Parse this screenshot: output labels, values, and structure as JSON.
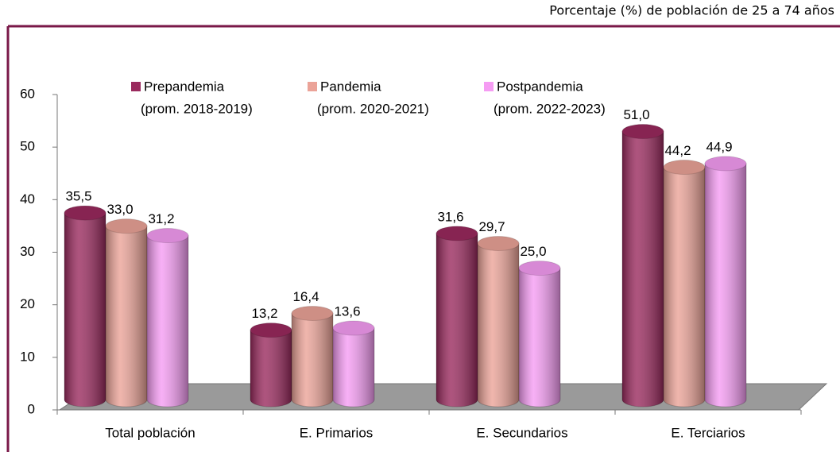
{
  "chart_data": {
    "type": "bar3d",
    "title": "Porcentaje (%) de población de 25 a 74 años",
    "categories": [
      "Total población",
      "E. Primarios",
      "E. Secundarios",
      "E. Terciarios"
    ],
    "series": [
      {
        "name": "Prepandemia",
        "period": "(prom. 2018-2019)",
        "color": "#9a2a5e",
        "values": [
          35.5,
          13.2,
          31.6,
          51.0
        ],
        "value_labels": [
          "35,5",
          "13,2",
          "31,6",
          "51,0"
        ]
      },
      {
        "name": "Pandemia",
        "period": "(prom. 2020-2021)",
        "color": "#eba398",
        "values": [
          33.0,
          16.4,
          29.7,
          44.2
        ],
        "value_labels": [
          "33,0",
          "16,4",
          "29,7",
          "44,2"
        ]
      },
      {
        "name": "Postpandemia",
        "period": "(prom. 2022-2023)",
        "color": "#f59cf3",
        "values": [
          31.2,
          13.6,
          25.0,
          44.9
        ],
        "value_labels": [
          "31,2",
          "13,6",
          "25,0",
          "44,9"
        ]
      }
    ],
    "ylim": [
      0,
      60
    ],
    "yticks": [
      0,
      10,
      20,
      30,
      40,
      50,
      60
    ]
  }
}
